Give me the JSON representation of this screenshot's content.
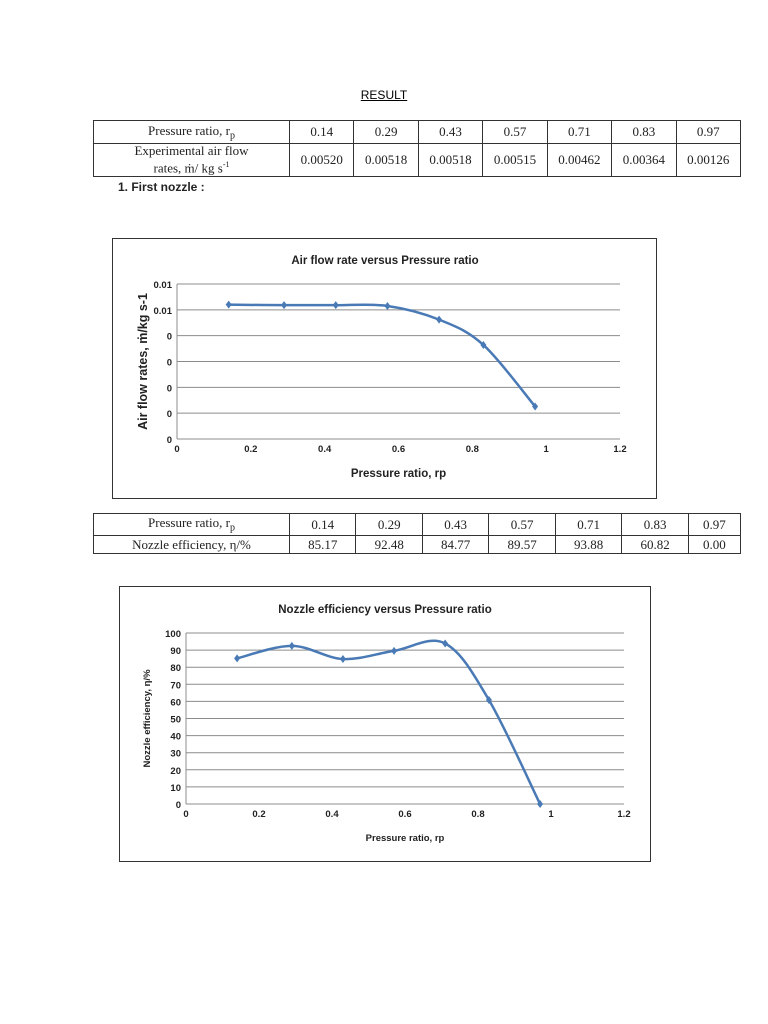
{
  "heading": "RESULT",
  "table1": {
    "row_headers": [
      "Pressure ratio, r",
      "Experimental air flow",
      "rates, ṁ/ kg s"
    ],
    "pressure_label": "Pressure ratio, r",
    "pressure_sub": "p",
    "flow_label_line1": "Experimental air flow",
    "flow_label_line2": "rates, ṁ/ kg s",
    "flow_label_sup": "-1",
    "pressure_ratios": [
      "0.14",
      "0.29",
      "0.43",
      "0.57",
      "0.71",
      "0.83",
      "0.97"
    ],
    "air_flow_rates": [
      "0.00520",
      "0.00518",
      "0.00518",
      "0.00515",
      "0.00462",
      "0.00364",
      "0.00126"
    ]
  },
  "section_label": "1.   First nozzle :",
  "table2": {
    "pressure_label": "Pressure ratio, r",
    "pressure_sub": "p",
    "efficiency_label": "Nozzle efficiency, η/%",
    "pressure_ratios": [
      "0.14",
      "0.29",
      "0.43",
      "0.57",
      "0.71",
      "0.83",
      "0.97"
    ],
    "efficiencies": [
      "85.17",
      "92.48",
      "84.77",
      "89.57",
      "93.88",
      "60.82",
      "0.00"
    ]
  },
  "chart_data": [
    {
      "type": "line",
      "title": "Air flow rate versus Pressure ratio",
      "xlabel": "Pressure ratio, rp",
      "ylabel": "Air flow rates, ṁ/kg s-1",
      "x": [
        0.14,
        0.29,
        0.43,
        0.57,
        0.71,
        0.83,
        0.97
      ],
      "series": [
        {
          "name": "Air flow rate",
          "values": [
            0.0052,
            0.00518,
            0.00518,
            0.00515,
            0.00462,
            0.00364,
            0.00126
          ],
          "color": "#4a7ab5"
        }
      ],
      "xlim": [
        0,
        1.2
      ],
      "ylim": [
        0,
        0.006
      ],
      "x_ticks": [
        "0",
        "0.2",
        "0.4",
        "0.6",
        "0.8",
        "1",
        "1.2"
      ],
      "y_ticks": [
        "0",
        "0",
        "0",
        "0",
        "0",
        "0.01",
        "0.01"
      ],
      "grid": true,
      "smooth": true,
      "legend": "none"
    },
    {
      "type": "line",
      "title": "Nozzle efficiency versus Pressure ratio",
      "xlabel": "Pressure ratio, rp",
      "ylabel": "Nozzle efficiency, η/%",
      "x": [
        0.14,
        0.29,
        0.43,
        0.57,
        0.71,
        0.83,
        0.97
      ],
      "series": [
        {
          "name": "Nozzle efficiency",
          "values": [
            85.17,
            92.48,
            84.77,
            89.57,
            93.88,
            60.82,
            0.0
          ],
          "color": "#4a7ab5"
        }
      ],
      "xlim": [
        0,
        1.2
      ],
      "ylim": [
        0,
        100
      ],
      "x_ticks": [
        "0",
        "0.2",
        "0.4",
        "0.6",
        "0.8",
        "1",
        "1.2"
      ],
      "y_ticks": [
        "0",
        "10",
        "20",
        "30",
        "40",
        "50",
        "60",
        "70",
        "80",
        "90",
        "100"
      ],
      "grid": true,
      "smooth": true,
      "legend": "none"
    }
  ]
}
